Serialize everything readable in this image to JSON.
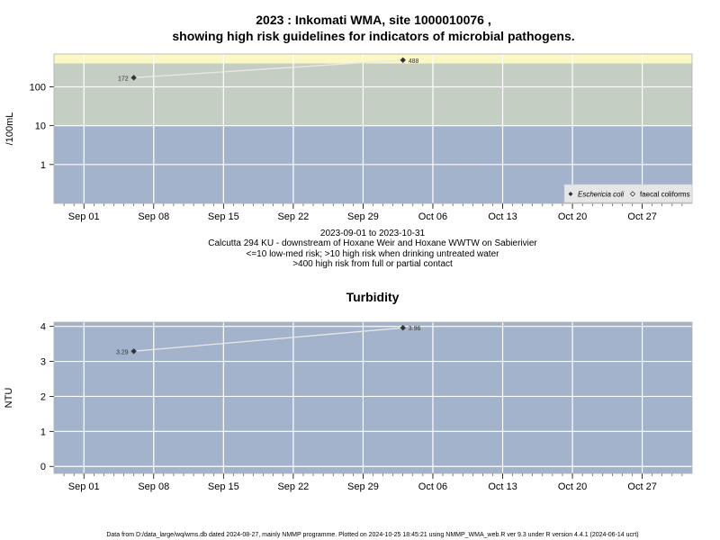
{
  "chart_data": [
    {
      "type": "scatter",
      "title_line1": "2023 : Inkomati WMA, site 1000010076 ,",
      "title_line2": "showing high risk guidelines for indicators of microbial pathogens.",
      "ylabel": "/100mL",
      "y_scale": "log",
      "y_ticks": [
        "1",
        "10",
        "100"
      ],
      "x_ticks": [
        "Sep 01",
        "Sep 08",
        "Sep 15",
        "Sep 22",
        "Sep 29",
        "Oct 06",
        "Oct 13",
        "Oct 20",
        "Oct 27"
      ],
      "xlim": [
        "2023-08-29",
        "2023-11-01"
      ],
      "ylim": [
        0.1,
        700
      ],
      "bands": [
        {
          "from": 0.1,
          "to": 10,
          "color": "#a2b3cb"
        },
        {
          "from": 10,
          "to": 400,
          "color": "#c5cec2"
        },
        {
          "from": 400,
          "to": 700,
          "color": "#fbf8c6"
        }
      ],
      "grid": true,
      "series": [
        {
          "name": "Eschericia coli",
          "marker": "diamond-filled",
          "color": "#333333",
          "points": [
            {
              "x": "2023-09-06",
              "y": 172,
              "label": "172"
            },
            {
              "x": "2023-10-03",
              "y": 488,
              "label": "488"
            }
          ]
        }
      ],
      "legend": {
        "placement": "bottom-right",
        "entries": [
          "Eschericia coli",
          "faecal coliforms"
        ]
      },
      "subtitle_lines": [
        "2023-09-01 to 2023-10-31",
        "Calcutta 294 KU - downstream of Hoxane Weir and Hoxane WWTW on Sabierivier",
        "<=10 low-med risk; >10 high risk when drinking untreated water",
        ">400 high risk from full or partial contact"
      ]
    },
    {
      "type": "scatter",
      "title": "Turbidity",
      "ylabel": "NTU",
      "y_ticks": [
        "0",
        "1",
        "2",
        "3",
        "4"
      ],
      "x_ticks": [
        "Sep 01",
        "Sep 08",
        "Sep 15",
        "Sep 22",
        "Sep 29",
        "Oct 06",
        "Oct 13",
        "Oct 20",
        "Oct 27"
      ],
      "xlim": [
        "2023-08-29",
        "2023-11-01"
      ],
      "ylim": [
        -0.2,
        4.12
      ],
      "background": "#a2b3cb",
      "grid": true,
      "series": [
        {
          "name": "Turbidity",
          "marker": "diamond-filled",
          "color": "#333333",
          "points": [
            {
              "x": "2023-09-06",
              "y": 3.29,
              "label": "3.29"
            },
            {
              "x": "2023-10-03",
              "y": 3.96,
              "label": "3.96"
            }
          ]
        }
      ]
    }
  ],
  "footer": "Data from D:/data_large/wq/wms.db dated 2024-08-27, mainly NMMP programme. Plotted on 2024-10-25 18:45:21 using NMMP_WMA_web.R ver 9.3 under R version 4.4.1 (2024-06-14 ucrt)"
}
